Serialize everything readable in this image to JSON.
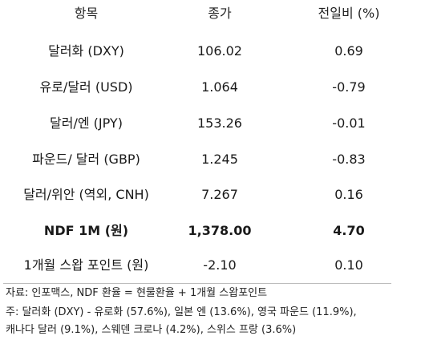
{
  "header": {
    "item": "항목",
    "price": "종가",
    "change": "전일비 (%)"
  },
  "rows": [
    {
      "item": "달러화 (DXY)",
      "price": "106.02",
      "change": "0.69",
      "bold": false
    },
    {
      "item": "유로/달러 (USD)",
      "price": "1.064",
      "change": "-0.79",
      "bold": false
    },
    {
      "item": "달러/엔 (JPY)",
      "price": "153.26",
      "change": "-0.01",
      "bold": false
    },
    {
      "item": "파운드/ 달러 (GBP)",
      "price": "1.245",
      "change": "-0.83",
      "bold": false
    },
    {
      "item": "달러/위안 (역외, CNH)",
      "price": "7.267",
      "change": "0.16",
      "bold": false
    },
    {
      "item": "NDF 1M (원)",
      "price": "1,378.00",
      "change": "4.70",
      "bold": true
    },
    {
      "item": "1개월 스왑 포인트 (원)",
      "price": "-2.10",
      "change": "0.10",
      "bold": false
    }
  ],
  "notes": {
    "source": "자료: 인포맥스, NDF 환율 = 현물환율 + 1개월 스왑포인트",
    "note_line1": "주: 달러화 (DXY) - 유로화 (57.6%), 일본 엔 (13.6%), 영국 파운드 (11.9%),",
    "note_line2": "캐나다 달러 (9.1%), 스웨덴 크로나 (4.2%), 스위스 프랑 (3.6%)"
  }
}
